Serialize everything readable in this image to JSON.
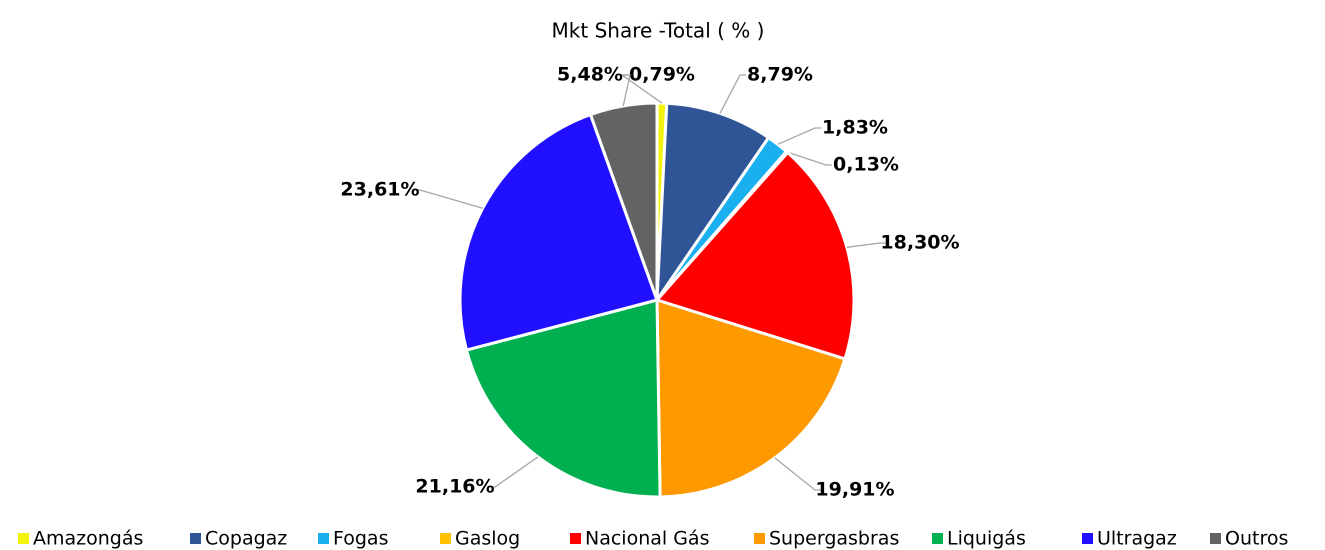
{
  "chart_data": {
    "type": "pie",
    "title": "Mkt Share -Total ( % )",
    "categories": [
      "Amazongás",
      "Copagaz",
      "Fogas",
      "Gaslog",
      "Nacional Gás",
      "Supergasbras",
      "Liquigás",
      "Ultragaz",
      "Outros"
    ],
    "values": [
      0.79,
      8.79,
      1.83,
      0.13,
      18.3,
      19.91,
      21.16,
      23.61,
      5.48
    ],
    "value_labels": [
      "0,79%",
      "8,79%",
      "1,83%",
      "0,13%",
      "18,30%",
      "19,91%",
      "21,16%",
      "23,61%",
      "5,48%"
    ],
    "colors": [
      "#f2f20d",
      "#2f5597",
      "#1ab0f0",
      "#ffc000",
      "#ff0000",
      "#ff9900",
      "#00b050",
      "#2010ff",
      "#636363"
    ],
    "legend": "bottom"
  }
}
